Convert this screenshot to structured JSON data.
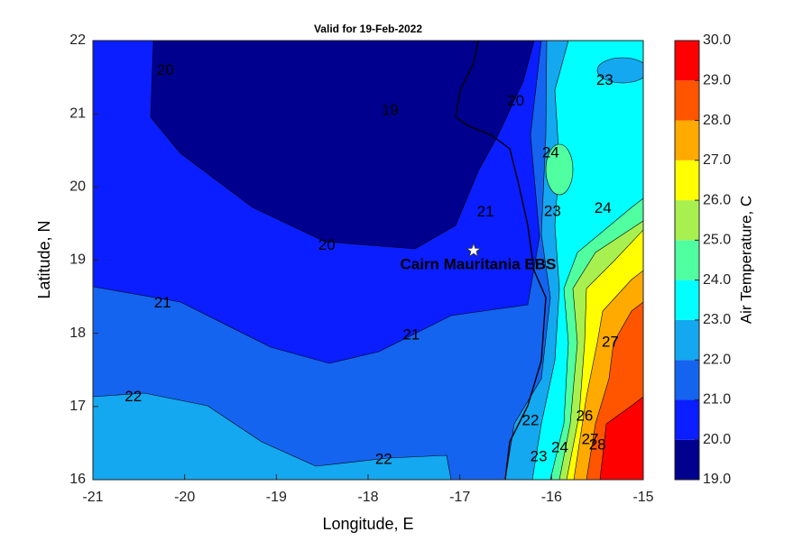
{
  "chart_data": {
    "type": "contour",
    "title": "Valid for 19-Feb-2022",
    "xlabel": "Longitude, E",
    "ylabel": "Latitude, N",
    "xlim": [
      -21,
      -15
    ],
    "ylim": [
      16,
      22
    ],
    "xticks": [
      -21,
      -20,
      -19,
      -18,
      -17,
      -16,
      -15
    ],
    "yticks": [
      16,
      17,
      18,
      19,
      20,
      21,
      22
    ],
    "colorbar": {
      "label": "Air Temperature, C",
      "lim": [
        19,
        30
      ],
      "ticks": [
        {
          "value": 19,
          "label": "19.0"
        },
        {
          "value": 20,
          "label": "20.0"
        },
        {
          "value": 21,
          "label": "21.0"
        },
        {
          "value": 22,
          "label": "22.0"
        },
        {
          "value": 23,
          "label": "23.0"
        },
        {
          "value": 24,
          "label": "24.0"
        },
        {
          "value": 25,
          "label": "25.0"
        },
        {
          "value": 26,
          "label": "26.0"
        },
        {
          "value": 27,
          "label": "27.0"
        },
        {
          "value": 28,
          "label": "28.0"
        },
        {
          "value": 29,
          "label": "29.0"
        },
        {
          "value": 30,
          "label": "30.0"
        }
      ],
      "colors": [
        "#00008f",
        "#0a1eff",
        "#1464f0",
        "#14a8f0",
        "#00ffff",
        "#50ffa0",
        "#a8f050",
        "#ffff00",
        "#ffaa00",
        "#ff5500",
        "#ff0000"
      ]
    },
    "contour_labels": [
      {
        "level": 20,
        "x": -20.21,
        "y": 21.59
      },
      {
        "level": 19,
        "x": -17.76,
        "y": 21.04
      },
      {
        "level": 20,
        "x": -16.39,
        "y": 21.17
      },
      {
        "level": 23,
        "x": -15.42,
        "y": 21.45
      },
      {
        "level": 24,
        "x": -16.01,
        "y": 20.46
      },
      {
        "level": 24,
        "x": -15.44,
        "y": 19.7
      },
      {
        "level": 23,
        "x": -15.99,
        "y": 19.66
      },
      {
        "level": 21,
        "x": -16.72,
        "y": 19.65
      },
      {
        "level": 20,
        "x": -18.45,
        "y": 19.2
      },
      {
        "level": 21,
        "x": -20.24,
        "y": 18.41
      },
      {
        "level": 21,
        "x": -17.53,
        "y": 17.97
      },
      {
        "level": 27,
        "x": -15.36,
        "y": 17.87
      },
      {
        "level": 22,
        "x": -20.56,
        "y": 17.13
      },
      {
        "level": 22,
        "x": -16.23,
        "y": 16.8
      },
      {
        "level": 22,
        "x": -17.83,
        "y": 16.27
      },
      {
        "level": 23,
        "x": -16.14,
        "y": 16.31
      },
      {
        "level": 24,
        "x": -15.91,
        "y": 16.43
      },
      {
        "level": 26,
        "x": -15.64,
        "y": 16.86
      },
      {
        "level": 27,
        "x": -15.58,
        "y": 16.54
      },
      {
        "level": 28,
        "x": -15.5,
        "y": 16.47
      }
    ],
    "station": {
      "name": "Cairn Mauritania EBS",
      "lon": -16.85,
      "lat": 19.13
    }
  }
}
